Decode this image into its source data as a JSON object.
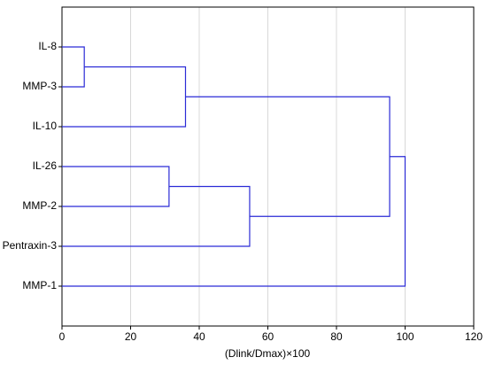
{
  "chart_data": {
    "type": "dendrogram",
    "x_label": "(Dlink/Dmax)×100",
    "categories": [
      "IL-8",
      "MMP-3",
      "IL-10",
      "IL-26",
      "MMP-2",
      "Pentraxin-3",
      "MMP-1"
    ],
    "merges": [
      {
        "members": [
          0,
          1
        ],
        "value": 6.5
      },
      {
        "members": [
          7,
          2
        ],
        "value": 36
      },
      {
        "members": [
          3,
          4
        ],
        "value": 31.2
      },
      {
        "members": [
          9,
          5
        ],
        "value": 54.7
      },
      {
        "members": [
          8,
          10
        ],
        "value": 95.5
      },
      {
        "members": [
          11,
          6
        ],
        "value": 100
      }
    ],
    "color": "#2b2bd6",
    "xlim": [
      0,
      120
    ],
    "xticks": [
      0,
      20,
      40,
      60,
      80,
      100,
      120
    ],
    "grid": true
  }
}
